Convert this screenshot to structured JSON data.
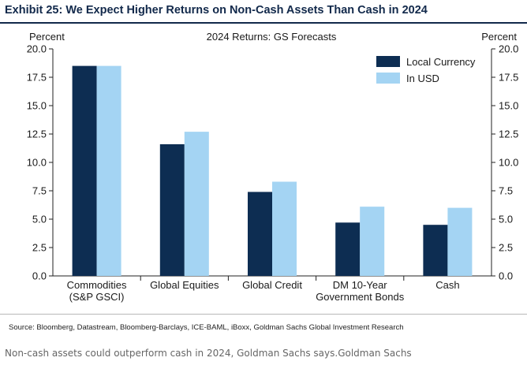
{
  "exhibit": {
    "title": "Exhibit 25: We Expect Higher Returns on Non-Cash Assets Than Cash in 2024",
    "source": "Source: Bloomberg, Datastream, Bloomberg-Barclays, ICE-BAML, iBoxx, Goldman Sachs Global Investment Research"
  },
  "caption": "Non-cash assets could outperform cash in 2024, Goldman Sachs says.Goldman Sachs",
  "chart_data": {
    "type": "bar",
    "title": "2024 Returns: GS Forecasts",
    "ylabel_left": "Percent",
    "ylabel_right": "Percent",
    "ylim": [
      0,
      20
    ],
    "yticks": [
      "0.0",
      "2.5",
      "5.0",
      "7.5",
      "10.0",
      "12.5",
      "15.0",
      "17.5",
      "20.0"
    ],
    "categories": [
      [
        "Commodities",
        "(S&P GSCI)"
      ],
      [
        "Global Equities"
      ],
      [
        "Global Credit"
      ],
      [
        "DM 10-Year",
        "Government Bonds"
      ],
      [
        "Cash"
      ]
    ],
    "series": [
      {
        "name": "Local Currency",
        "color": "#0d2d52",
        "values": [
          18.5,
          11.6,
          7.4,
          4.7,
          4.5
        ]
      },
      {
        "name": "In USD",
        "color": "#a4d4f3",
        "values": [
          18.5,
          12.7,
          8.3,
          6.1,
          6.0
        ]
      }
    ],
    "legend_position": "top-right",
    "grid": false
  }
}
